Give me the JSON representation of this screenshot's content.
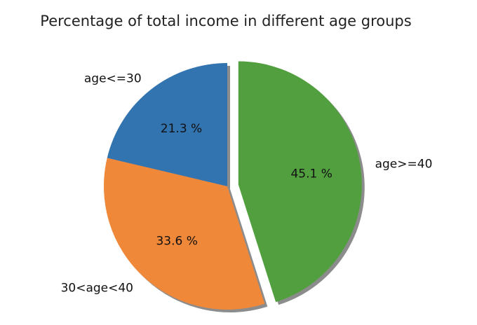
{
  "chart_data": {
    "type": "pie",
    "title": "Percentage of total income in different age groups",
    "slices": [
      {
        "label": "age<=30",
        "value": 21.3,
        "pct_label": "21.3 %",
        "color": "#3274b0",
        "explode": false
      },
      {
        "label": "30<age<40",
        "value": 33.6,
        "pct_label": "33.6 %",
        "color": "#f0883a",
        "explode": false
      },
      {
        "label": "age>=40",
        "value": 45.1,
        "pct_label": "45.1 %",
        "color": "#529f3f",
        "explode": true
      }
    ],
    "start_angle_deg": 90,
    "direction": "counterclockwise",
    "shadow": true
  }
}
